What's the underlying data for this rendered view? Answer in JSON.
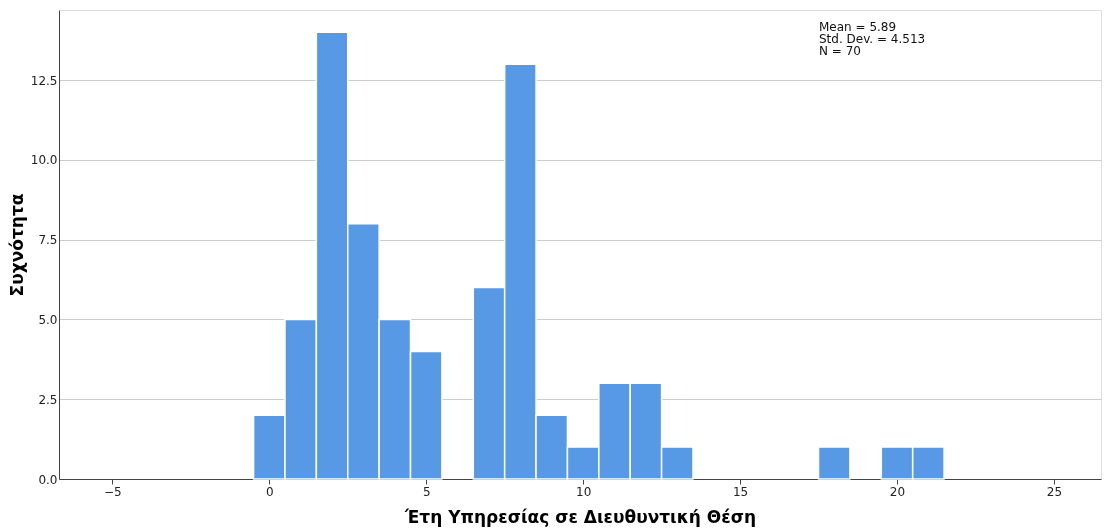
{
  "chart_data": {
    "type": "histogram",
    "xlabel": "Έτη Υπηρεσίας σε Διευθυντική Θέση",
    "ylabel": "Συχνότητα",
    "bins": [
      -0.5,
      0.5,
      1.5,
      2.5,
      3.5,
      4.5,
      5.5,
      6.5,
      7.5,
      8.5,
      9.5,
      10.5,
      11.5,
      12.5,
      13.5,
      14.5,
      15.5,
      16.5,
      17.5,
      18.5,
      19.5,
      20.5,
      21.5
    ],
    "values": [
      2,
      5,
      14,
      8,
      5,
      4,
      0,
      6,
      13,
      2,
      1,
      3,
      3,
      1,
      0,
      0,
      0,
      0,
      1,
      0,
      1,
      1
    ],
    "color": "#5899e6",
    "xlim": [
      -6.7,
      26.5
    ],
    "ylim": [
      0,
      14.7
    ],
    "xticks": [
      -5,
      0,
      5,
      10,
      15,
      20,
      25
    ],
    "yticks": [
      {
        "value": 0,
        "label": "0.0"
      },
      {
        "value": 2.5,
        "label": "2.5"
      },
      {
        "value": 5,
        "label": "5.0"
      },
      {
        "value": 7.5,
        "label": "7.5"
      },
      {
        "value": 10,
        "label": "10.0"
      },
      {
        "value": 12.5,
        "label": "12.5"
      }
    ],
    "grid": "y",
    "annotations": [
      "Mean = 5.89",
      "Std. Dev. = 4.513",
      "N = 70"
    ]
  }
}
